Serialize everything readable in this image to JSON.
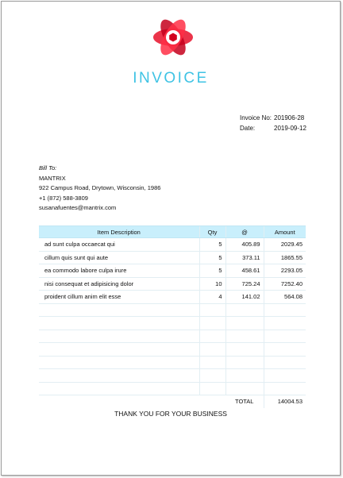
{
  "invoice": {
    "title": "INVOICE",
    "logo": {
      "icon": "atom-logo-icon",
      "colors": [
        "#e8102a",
        "#b5001a",
        "#ff3b4f"
      ]
    },
    "meta": {
      "invoice_no_label": "Invoice No:",
      "invoice_no": "201906-28",
      "date_label": "Date:",
      "date": "2019-09-12"
    },
    "bill_to": {
      "label": "Bill To:",
      "name": "MANTRIX",
      "address": "922 Campus Road, Drytown, Wisconsin, 1986",
      "phone": "+1 (872) 588-3809",
      "email": "susanafuentes@mantrix.com"
    },
    "table": {
      "headers": [
        "Item Description",
        "Qty",
        "@",
        "Amount"
      ],
      "rows": [
        [
          "ad sunt culpa occaecat qui",
          "5",
          "405.89",
          "2029.45"
        ],
        [
          "cillum quis sunt qui aute",
          "5",
          "373.11",
          "1865.55"
        ],
        [
          "ea commodo labore culpa irure",
          "5",
          "458.61",
          "2293.05"
        ],
        [
          "nisi consequat et adipisicing dolor",
          "10",
          "725.24",
          "7252.40"
        ],
        [
          "proident cillum anim elit esse",
          "4",
          "141.02",
          "564.08"
        ]
      ],
      "total_label": "TOTAL",
      "total": "14004.53"
    },
    "footer": "THANK YOU FOR YOUR BUSINESS",
    "accent_color": "#3fc3e4",
    "header_bg": "#c9effc"
  }
}
